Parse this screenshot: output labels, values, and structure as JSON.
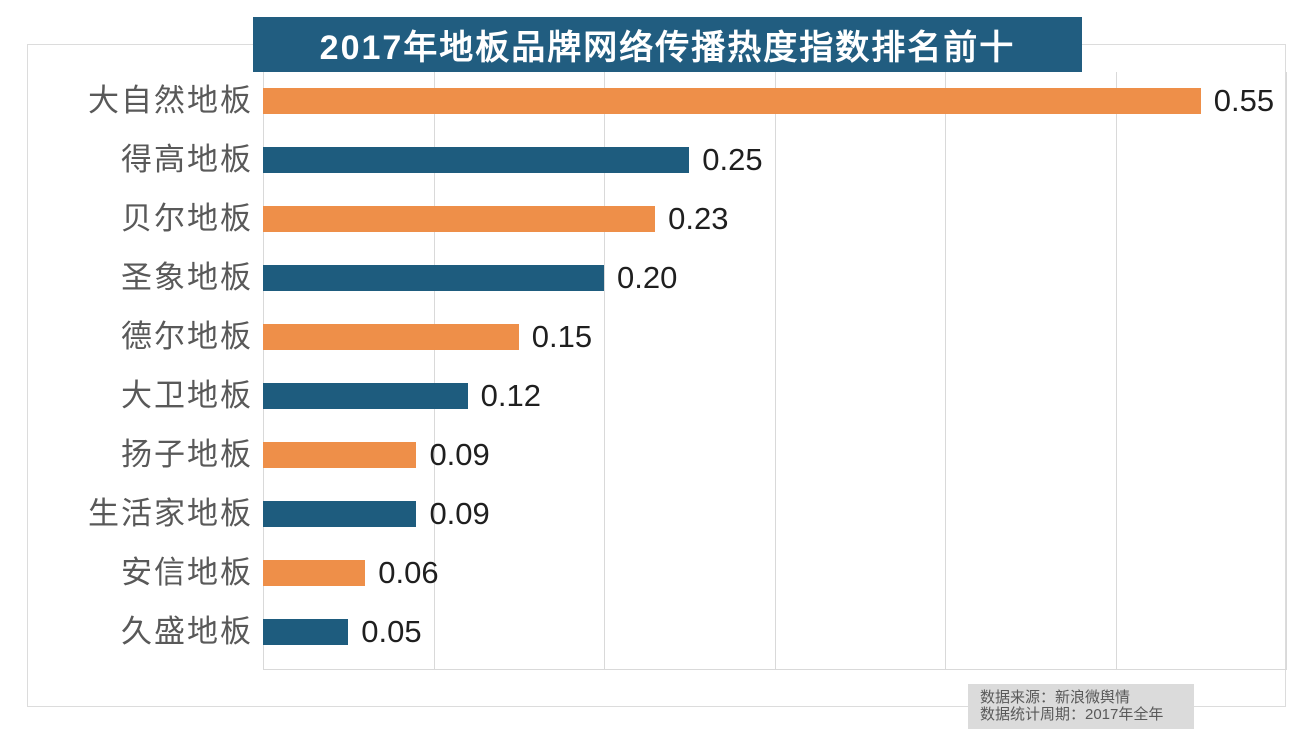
{
  "chart_data": {
    "type": "bar",
    "orientation": "horizontal",
    "title": "2017年地板品牌网络传播热度指数排名前十",
    "categories": [
      "大自然地板",
      "得高地板",
      "贝尔地板",
      "圣象地板",
      "德尔地板",
      "大卫地板",
      "扬子地板",
      "生活家地板",
      "安信地板",
      "久盛地板"
    ],
    "values": [
      0.55,
      0.25,
      0.23,
      0.2,
      0.15,
      0.12,
      0.09,
      0.09,
      0.06,
      0.05
    ],
    "value_labels": [
      "0.55",
      "0.25",
      "0.23",
      "0.20",
      "0.15",
      "0.12",
      "0.09",
      "0.09",
      "0.06",
      "0.05"
    ],
    "xlim": [
      0,
      0.6
    ],
    "gridline_interval": 0.1,
    "grid": true,
    "legend_position": "none",
    "xlabel": "",
    "ylabel": ""
  },
  "footer": {
    "source_line": "数据来源：新浪微舆情",
    "period_line": "数据统计周期：2017年全年"
  },
  "colors": {
    "bar_orange": "#ee8f49",
    "bar_teal": "#1e5c7e",
    "title_bg": "#215d80",
    "title_text": "#ffffff",
    "gridline": "#d9d9d9",
    "panel_border": "#dcdcdc",
    "category_label": "#595959",
    "value_label": "#1f1f1f",
    "footer_bg": "#dbdbdb",
    "footer_text": "#595959"
  }
}
